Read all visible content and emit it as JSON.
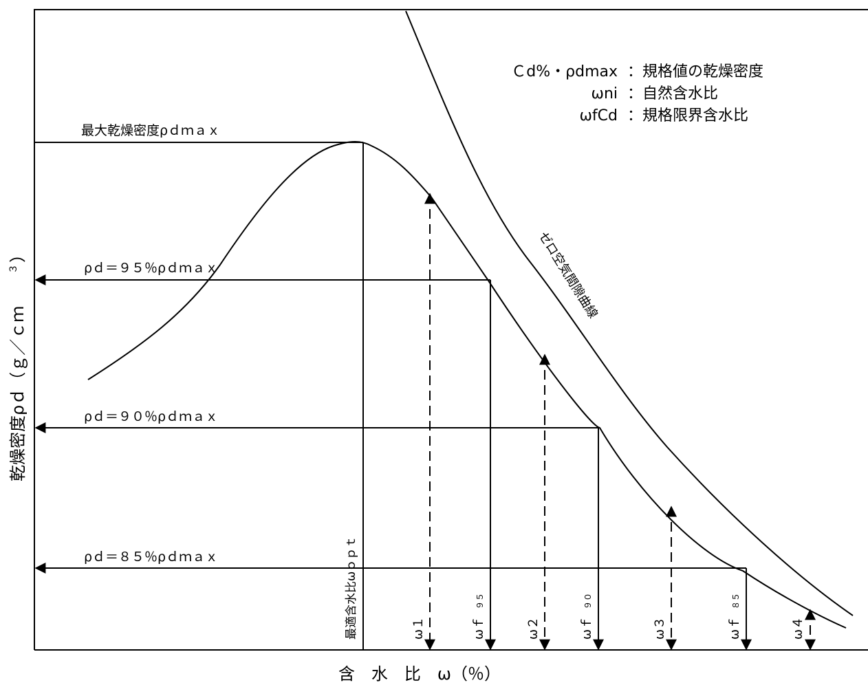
{
  "legend": {
    "lines": [
      {
        "key": "Ｃd%・ρdmax",
        "desc": "：規格値の乾燥密度"
      },
      {
        "key": "ωni",
        "desc": "：自然含水比"
      },
      {
        "key": "ωfCd",
        "desc": "：規格限界含水比"
      }
    ]
  },
  "labels": {
    "max_density": "最大乾燥密度ρｄｍａｘ",
    "rho95": "ρｄ＝９５％ρｄｍａｘ",
    "rho90": "ρｄ＝９０％ρｄｍａｘ",
    "rho85": "ρｄ＝８５％ρｄｍａｘ",
    "optimum": "最適含水比ωｏｐｔ",
    "zero_air_curve": "ゼロ空気間隙曲線"
  },
  "axis": {
    "x_label": "含　水　比　ω（％）",
    "y_label_main": "乾燥密度ρｄ（ｇ／ｃｍ",
    "y_label_sup": "３",
    "y_label_close": "）"
  },
  "markers": {
    "w1": "ω１",
    "wf95": "ωｆ",
    "wf95_sub": "９５",
    "w2": "ω２",
    "wf90": "ωｆ",
    "wf90_sub": "９０",
    "w3": "ω３",
    "wf85": "ωｆ",
    "wf85_sub": "８５",
    "w4": "ω４"
  }
}
